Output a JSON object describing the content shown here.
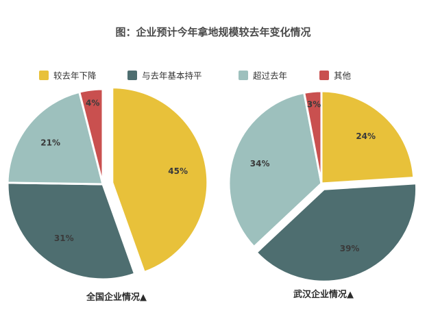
{
  "title": "图：企业预计今年拿地规模较去年变化情况",
  "colors": {
    "decrease": "#e8c13a",
    "flat": "#4e6e70",
    "exceed": "#9dc0bd",
    "other": "#c9504f",
    "text": "#333333"
  },
  "legend": [
    {
      "label": "较去年下降",
      "color": "#e8c13a"
    },
    {
      "label": "与去年基本持平",
      "color": "#4e6e70"
    },
    {
      "label": "超过去年",
      "color": "#9dc0bd"
    },
    {
      "label": "其他",
      "color": "#c9504f"
    }
  ],
  "chart_data": [
    {
      "type": "pie",
      "caption": "全国企业情况▲",
      "categories": [
        "较去年下降",
        "与去年基本持平",
        "超过去年",
        "其他"
      ],
      "values": [
        45,
        31,
        21,
        4
      ],
      "labels": [
        "45%",
        "31%",
        "21%",
        "4%"
      ],
      "colors": [
        "#e8c13a",
        "#4e6e70",
        "#9dc0bd",
        "#c9504f"
      ],
      "exploded": [
        true,
        false,
        false,
        false
      ]
    },
    {
      "type": "pie",
      "caption": "武汉企业情况▲",
      "categories": [
        "较去年下降",
        "与去年基本持平",
        "超过去年",
        "其他"
      ],
      "values": [
        24,
        39,
        34,
        3
      ],
      "labels": [
        "24%",
        "39%",
        "34%",
        "3%"
      ],
      "colors": [
        "#e8c13a",
        "#4e6e70",
        "#9dc0bd",
        "#c9504f"
      ],
      "exploded": [
        false,
        true,
        false,
        false
      ]
    }
  ]
}
